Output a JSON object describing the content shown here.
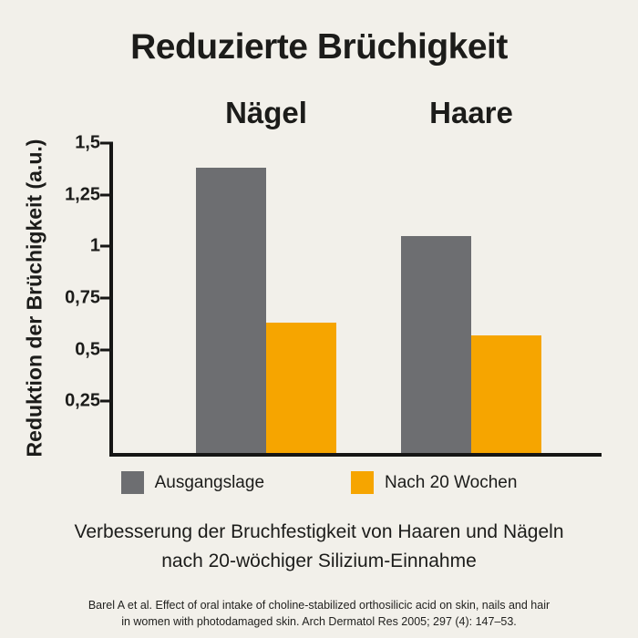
{
  "title": "Reduzierte Brüchigkeit",
  "chart_data": {
    "type": "bar",
    "categories": [
      "Nägel",
      "Haare"
    ],
    "series": [
      {
        "name": "Ausgangslage",
        "color": "#6d6e71",
        "values": [
          1.38,
          1.05
        ]
      },
      {
        "name": "Nach 20 Wochen",
        "color": "#f6a500",
        "values": [
          0.63,
          0.57
        ]
      }
    ],
    "ylabel": "Reduktion der Brüchigkeit (a.u.)",
    "xlabel": "",
    "ylim": [
      0,
      1.5
    ],
    "yticks": [
      "1,5",
      "1,25",
      "1",
      "0,75",
      "0,5",
      "0,25"
    ],
    "ytick_values": [
      1.5,
      1.25,
      1,
      0.75,
      0.5,
      0.25
    ],
    "grid": false,
    "legend_position": "bottom"
  },
  "caption": {
    "line1": "Verbesserung der Bruchfestigkeit von Haaren und Nägeln",
    "line2": "nach 20-wöchiger Silizium-Einnahme"
  },
  "footnote": {
    "line1": "Barel A et al. Effect of oral intake of choline-stabilized orthosilicic acid on skin, nails and hair",
    "line2": "in women with photodamaged skin. Arch Dermatol Res 2005; 297 (4): 147–53."
  },
  "colors": {
    "background": "#f2f0ea",
    "bar_gray": "#6d6e71",
    "bar_orange": "#f6a500",
    "text": "#1c1c1a"
  }
}
